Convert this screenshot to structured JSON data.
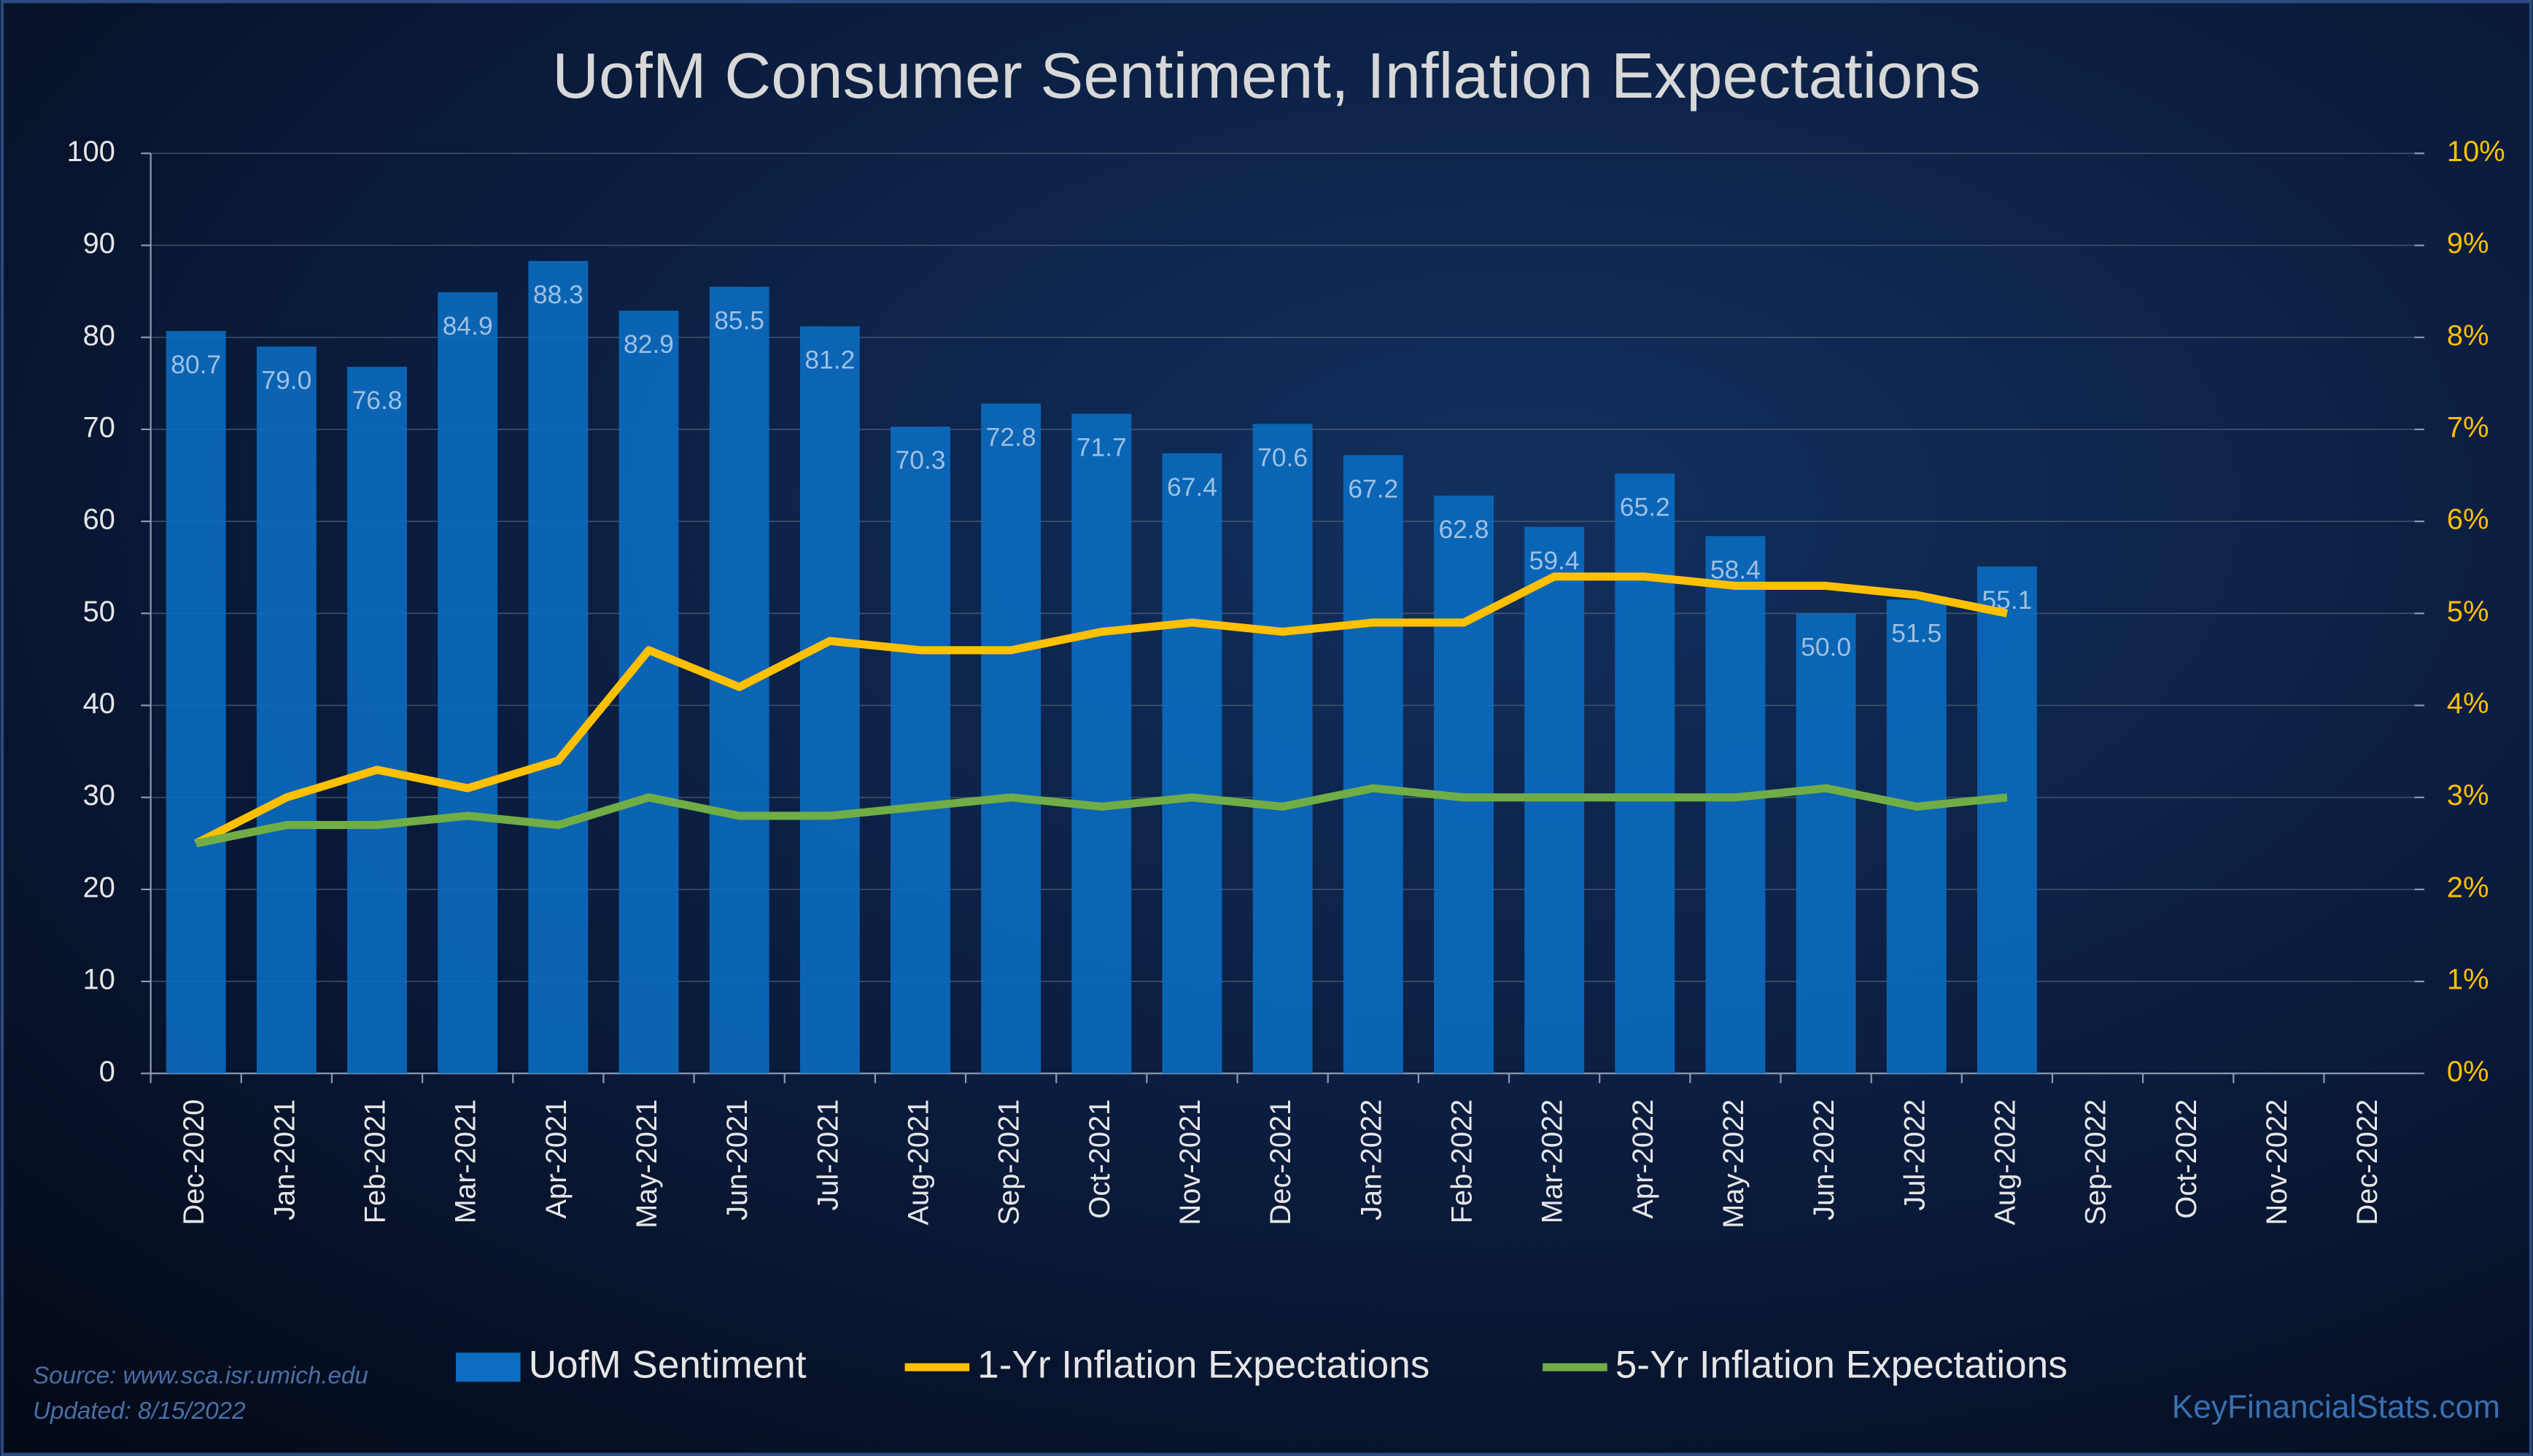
{
  "chart_data": {
    "type": "bar",
    "title": "UofM Consumer Sentiment, Inflation Expectations",
    "categories": [
      "Dec-2020",
      "Jan-2021",
      "Feb-2021",
      "Mar-2021",
      "Apr-2021",
      "May-2021",
      "Jun-2021",
      "Jul-2021",
      "Aug-2021",
      "Sep-2021",
      "Oct-2021",
      "Nov-2021",
      "Dec-2021",
      "Jan-2022",
      "Feb-2022",
      "Mar-2022",
      "Apr-2022",
      "May-2022",
      "Jun-2022",
      "Jul-2022",
      "Aug-2022",
      "Sep-2022",
      "Oct-2022",
      "Nov-2022",
      "Dec-2022"
    ],
    "series": [
      {
        "name": "UofM Sentiment",
        "type": "bar",
        "color": "#0b6cc0",
        "values": [
          80.7,
          79.0,
          76.8,
          84.9,
          88.3,
          82.9,
          85.5,
          81.2,
          70.3,
          72.8,
          71.7,
          67.4,
          70.6,
          67.2,
          62.8,
          59.4,
          65.2,
          58.4,
          50.0,
          51.5,
          55.1,
          null,
          null,
          null,
          null
        ],
        "value_labels": [
          "80.7",
          "79.0",
          "76.8",
          "84.9",
          "88.3",
          "82.9",
          "85.5",
          "81.2",
          "70.3",
          "72.8",
          "71.7",
          "67.4",
          "70.6",
          "67.2",
          "62.8",
          "59.4",
          "65.2",
          "58.4",
          "50.0",
          "51.5",
          "55.1",
          null,
          null,
          null,
          null
        ]
      },
      {
        "name": "1-Yr Inflation Expectations",
        "type": "line",
        "color": "#ffc000",
        "axis": "y2",
        "values": [
          2.5,
          3.0,
          3.3,
          3.1,
          3.4,
          4.6,
          4.2,
          4.7,
          4.6,
          4.6,
          4.8,
          4.9,
          4.8,
          4.9,
          4.9,
          5.4,
          5.4,
          5.3,
          5.3,
          5.2,
          5.0,
          null,
          null,
          null,
          null
        ]
      },
      {
        "name": "5-Yr Inflation Expectations",
        "type": "line",
        "color": "#70ad47",
        "axis": "y2",
        "values": [
          2.5,
          2.7,
          2.7,
          2.8,
          2.7,
          3.0,
          2.8,
          2.8,
          2.9,
          3.0,
          2.9,
          3.0,
          2.9,
          3.1,
          3.0,
          3.0,
          3.0,
          3.0,
          3.1,
          2.9,
          3.0,
          null,
          null,
          null,
          null
        ]
      }
    ],
    "ylim": [
      0,
      100
    ],
    "yticks": [
      0,
      10,
      20,
      30,
      40,
      50,
      60,
      70,
      80,
      90,
      100
    ],
    "y2lim": [
      0,
      10
    ],
    "y2ticks": [
      {
        "value": 0,
        "label": "0%"
      },
      {
        "value": 1,
        "label": "1%"
      },
      {
        "value": 2,
        "label": "2%"
      },
      {
        "value": 3,
        "label": "3%"
      },
      {
        "value": 4,
        "label": "4%"
      },
      {
        "value": 5,
        "label": "5%"
      },
      {
        "value": 6,
        "label": "6%"
      },
      {
        "value": 7,
        "label": "7%"
      },
      {
        "value": 8,
        "label": "8%"
      },
      {
        "value": 9,
        "label": "9%"
      },
      {
        "value": 10,
        "label": "10%"
      }
    ],
    "grid": true,
    "legend": "bottom",
    "source": "Source: www.sca.isr.umich.edu",
    "updated": "Updated: 8/15/2022",
    "watermark": "KeyFinancialStats.com"
  }
}
